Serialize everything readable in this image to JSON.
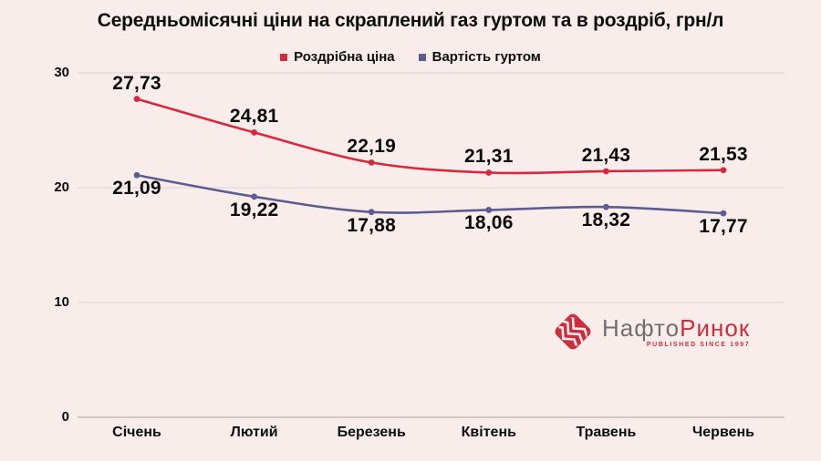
{
  "title": "Середньомісячні ціни на скраплений газ гуртом та в роздріб, грн/л",
  "colors": {
    "background": "#f9edeb",
    "text": "#0d0d0d",
    "retail_line": "#d6293e",
    "wholesale_line": "#5c5c91",
    "gridline": "#dcd2d0",
    "axis_line": "#c8bdbb",
    "logo_gray": "#6e6f71",
    "logo_red": "#cd2e3d"
  },
  "chart_data": {
    "type": "line",
    "title": "Середньомісячні ціни на скраплений газ гуртом та в роздріб, грн/л",
    "categories": [
      "Січень",
      "Лютий",
      "Березень",
      "Квітень",
      "Травень",
      "Червень"
    ],
    "series": [
      {
        "name": "Роздрібна ціна",
        "color": "#d6293e",
        "values": [
          27.73,
          24.81,
          22.19,
          21.31,
          21.43,
          21.53
        ],
        "value_labels": [
          "27,73",
          "24,81",
          "22,19",
          "21,31",
          "21,43",
          "21,53"
        ],
        "label_position": "above"
      },
      {
        "name": "Вартість гуртом",
        "color": "#5c5c91",
        "values": [
          21.09,
          19.22,
          17.88,
          18.06,
          18.32,
          17.77
        ],
        "value_labels": [
          "21,09",
          "19,22",
          "17,88",
          "18,06",
          "18,32",
          "17,77"
        ],
        "label_position": "below"
      }
    ],
    "xlabel": "",
    "ylabel": "",
    "ylim": [
      0,
      30
    ],
    "yticks": [
      0,
      10,
      20,
      30
    ],
    "grid": true,
    "legend_position": "top-center"
  },
  "logo": {
    "name_part1": "Нафто",
    "name_part2": "Ринок",
    "tagline": "PUBLISHED SINCE 1997"
  }
}
